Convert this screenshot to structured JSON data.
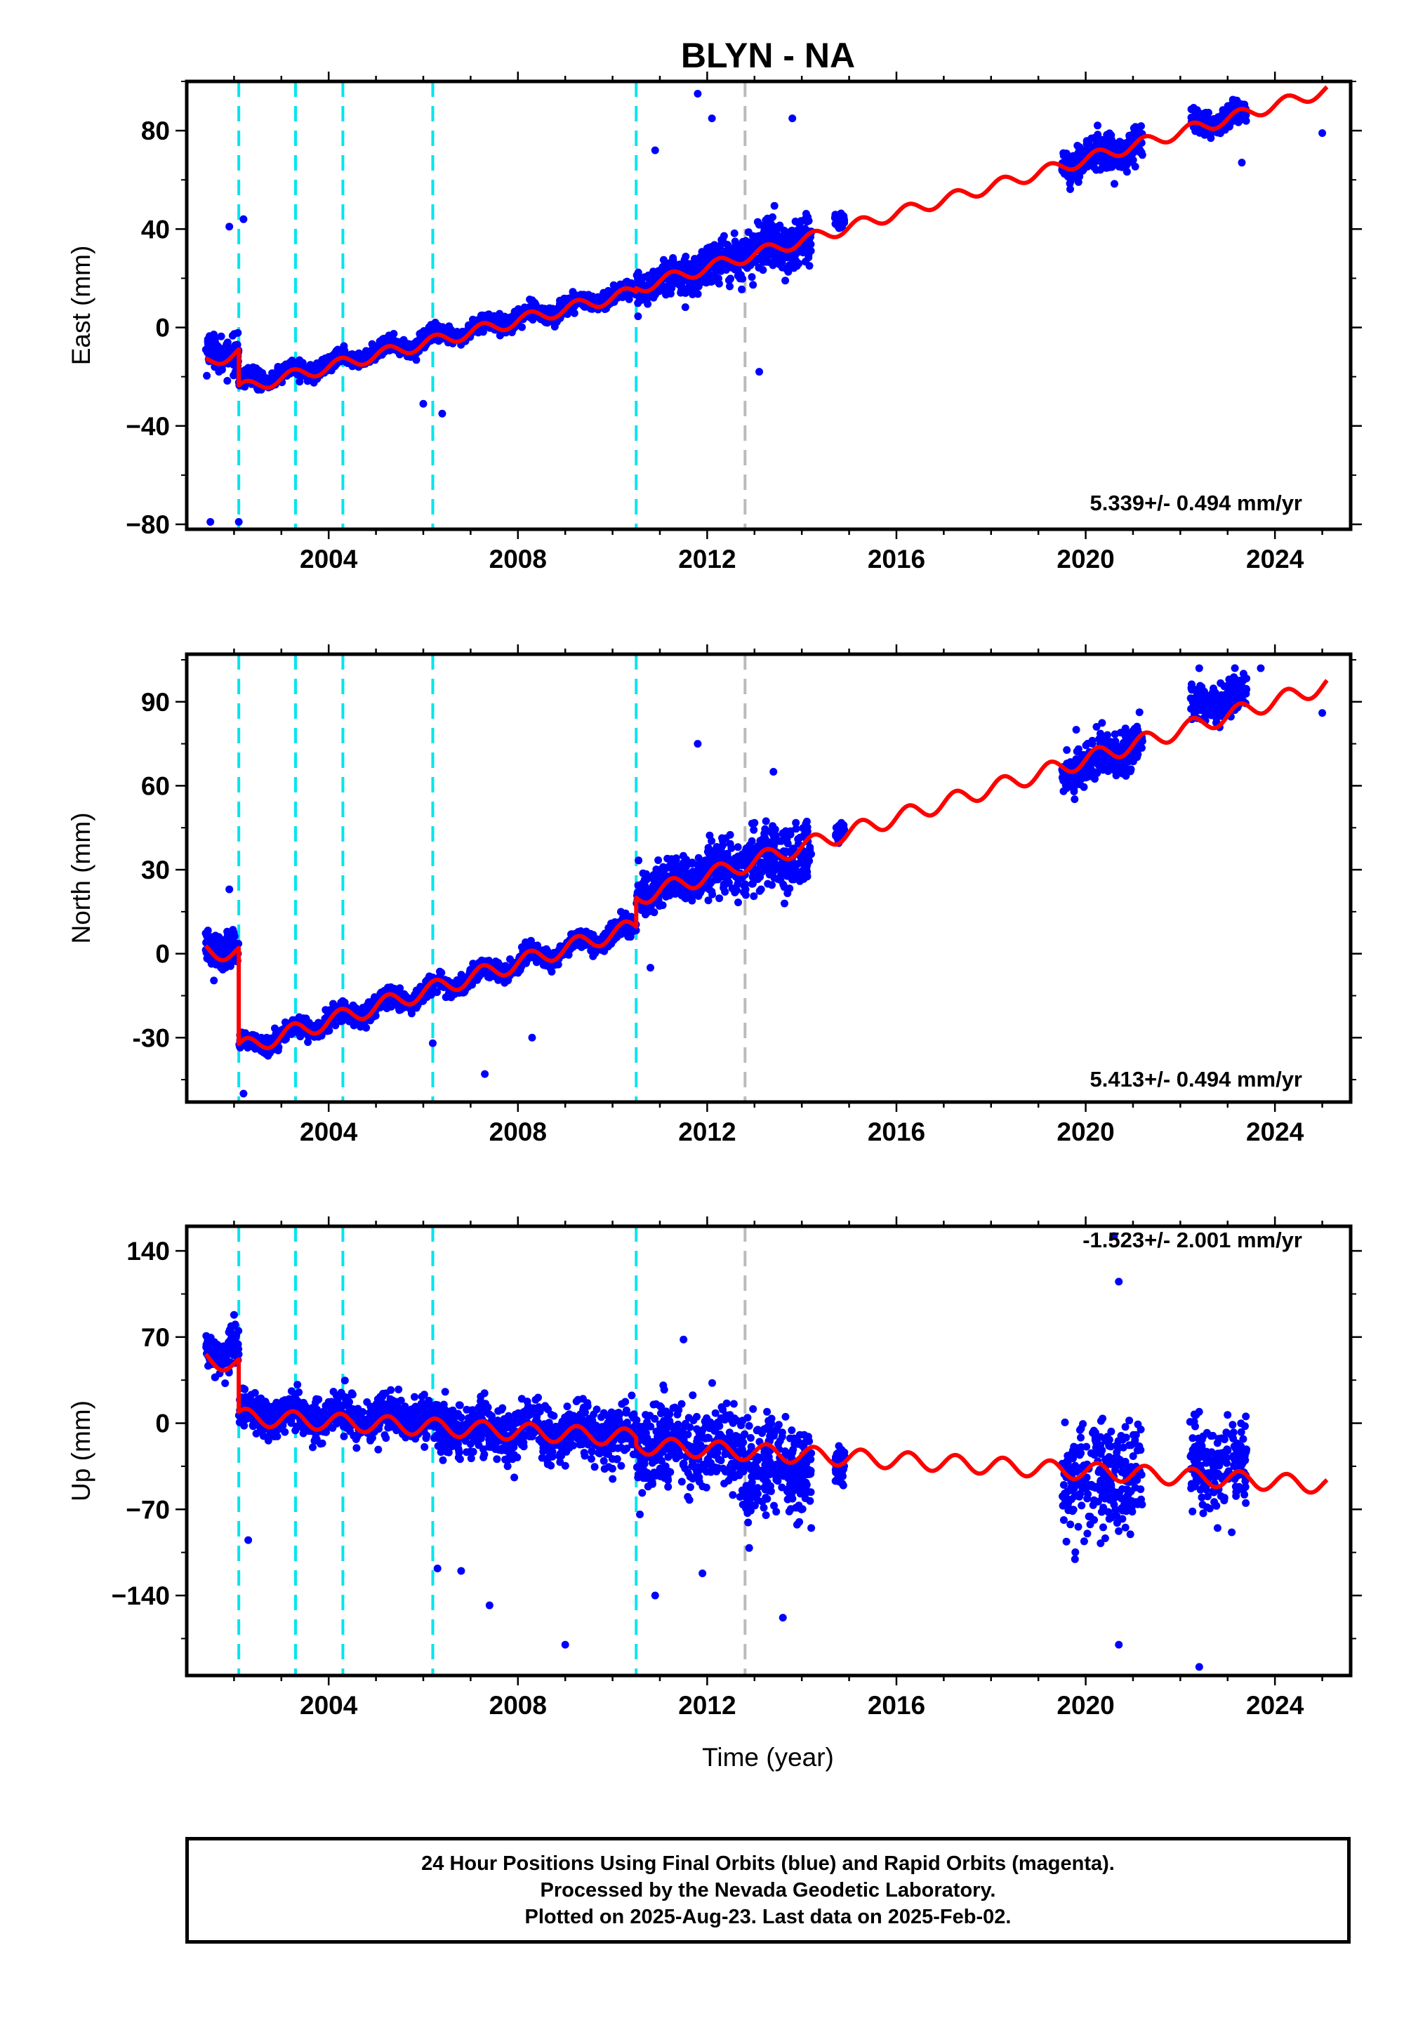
{
  "title": "BLYN - NA",
  "xlabel": "Time (year)",
  "caption": {
    "line1": "24 Hour Positions Using Final Orbits (blue) and Rapid Orbits (magenta).",
    "line2": "Processed by the Nevada Geodetic Laboratory.",
    "line3": "Plotted on 2025-Aug-23. Last data on 2025-Feb-02."
  },
  "colors": {
    "observations": "#0000ff",
    "model": "#ff0000",
    "offset_lines": "#00e5ee",
    "offset_line_gray": "#bbbbbb",
    "axis": "#000000"
  },
  "chart_data": [
    {
      "type": "scatter",
      "component": "east",
      "ylabel": "East (mm)",
      "rate_label": "5.339+/- 0.494 mm/yr",
      "xlim": [
        2001.0,
        2025.6
      ],
      "ylim": [
        -82,
        100
      ],
      "yticks": [
        -80,
        -40,
        0,
        40,
        80
      ],
      "ytick_labels": [
        "−80",
        "−40",
        "0",
        "40",
        "80"
      ],
      "xticks": [
        2004,
        2008,
        2012,
        2016,
        2020,
        2024
      ],
      "xtick_labels": [
        "2004",
        "2008",
        "2012",
        "2016",
        "2020",
        "2024"
      ],
      "offsets": [
        2002.1,
        2003.3,
        2004.3,
        2006.2,
        2010.5
      ],
      "offset_gray": [
        2012.8
      ],
      "model": {
        "segments": [
          {
            "from": 2001.4,
            "to": 2002.1,
            "start": -14,
            "slope": 5.2
          },
          {
            "from": 2002.1,
            "to": 2010.5,
            "start": -25,
            "slope": 4.7
          },
          {
            "from": 2010.5,
            "to": 2025.1,
            "start": 16,
            "slope": 5.5
          }
        ],
        "seasonal_amplitude": 2.5
      },
      "series": [
        {
          "label": "Final Orbits",
          "segments": [
            {
              "from": 2001.4,
              "to": 2002.1,
              "center": -10,
              "spread": 6
            },
            {
              "from": 2002.1,
              "to": 2010.5,
              "center": -23,
              "slope": 4.5,
              "spread": 3
            },
            {
              "from": 2010.5,
              "to": 2012.0,
              "center": 16,
              "slope": 5.5,
              "spread": 6
            },
            {
              "from": 2012.0,
              "to": 2014.2,
              "center": 25,
              "slope": 5.5,
              "spread": 9
            },
            {
              "from": 2014.7,
              "to": 2014.9,
              "center": 45,
              "spread": 3
            },
            {
              "from": 2019.5,
              "to": 2021.2,
              "center": 66,
              "slope": 5.0,
              "spread": 7
            },
            {
              "from": 2022.2,
              "to": 2023.4,
              "center": 82,
              "slope": 4.0,
              "spread": 4
            }
          ],
          "outliers": [
            [
              2001.5,
              -79
            ],
            [
              2002.1,
              -79
            ],
            [
              2001.9,
              41
            ],
            [
              2002.2,
              44
            ],
            [
              2011.8,
              95
            ],
            [
              2012.1,
              85
            ],
            [
              2013.1,
              -18
            ],
            [
              2013.8,
              85
            ],
            [
              2010.9,
              72
            ],
            [
              2006.0,
              -31
            ],
            [
              2006.4,
              -35
            ],
            [
              2025.0,
              79
            ],
            [
              2023.3,
              67
            ]
          ]
        }
      ]
    },
    {
      "type": "scatter",
      "component": "north",
      "ylabel": "North (mm)",
      "rate_label": "5.413+/- 0.494 mm/yr",
      "xlim": [
        2001.0,
        2025.6
      ],
      "ylim": [
        -53,
        107
      ],
      "yticks": [
        -30,
        0,
        30,
        60,
        90
      ],
      "ytick_labels": [
        "-30",
        "0",
        "30",
        "60",
        "90"
      ],
      "xticks": [
        2004,
        2008,
        2012,
        2016,
        2020,
        2024
      ],
      "xtick_labels": [
        "2004",
        "2008",
        "2012",
        "2016",
        "2020",
        "2024"
      ],
      "offsets": [
        2002.1,
        2003.3,
        2004.3,
        2006.2,
        2010.5
      ],
      "offset_gray": [
        2012.8
      ],
      "model": {
        "segments": [
          {
            "from": 2001.4,
            "to": 2002.1,
            "start": 1,
            "slope": -1.0
          },
          {
            "from": 2002.1,
            "to": 2010.5,
            "start": -34,
            "slope": 5.2
          },
          {
            "from": 2010.5,
            "to": 2025.1,
            "start": 20,
            "slope": 5.2
          }
        ],
        "seasonal_amplitude": 3
      },
      "series": [
        {
          "label": "Final Orbits",
          "segments": [
            {
              "from": 2001.4,
              "to": 2002.1,
              "center": 2,
              "spread": 6
            },
            {
              "from": 2002.1,
              "to": 2010.5,
              "center": -34,
              "slope": 5.2,
              "spread": 3
            },
            {
              "from": 2010.5,
              "to": 2012.0,
              "center": 22,
              "slope": 5.0,
              "spread": 7
            },
            {
              "from": 2012.0,
              "to": 2014.2,
              "center": 30,
              "slope": 3.0,
              "spread": 10
            },
            {
              "from": 2014.7,
              "to": 2014.9,
              "center": 45,
              "spread": 4
            },
            {
              "from": 2019.5,
              "to": 2021.2,
              "center": 65,
              "slope": 6.0,
              "spread": 7
            },
            {
              "from": 2022.2,
              "to": 2023.4,
              "center": 88,
              "slope": 4.0,
              "spread": 5
            }
          ],
          "outliers": [
            [
              2001.9,
              23
            ],
            [
              2002.2,
              -50
            ],
            [
              2007.3,
              -43
            ],
            [
              2006.2,
              -32
            ],
            [
              2008.3,
              -30
            ],
            [
              2011.8,
              75
            ],
            [
              2013.4,
              65
            ],
            [
              2022.4,
              102
            ],
            [
              2023.7,
              102
            ],
            [
              2025.0,
              86
            ],
            [
              2019.8,
              80
            ],
            [
              2010.8,
              -5
            ]
          ]
        }
      ]
    },
    {
      "type": "scatter",
      "component": "up",
      "ylabel": "Up (mm)",
      "rate_label": "-1.523+/- 2.001 mm/yr",
      "xlim": [
        2001.0,
        2025.6
      ],
      "ylim": [
        -205,
        160
      ],
      "yticks": [
        -140,
        -70,
        0,
        70,
        140
      ],
      "ytick_labels": [
        "−140",
        "−70",
        "0",
        "70",
        "140"
      ],
      "xticks": [
        2004,
        2008,
        2012,
        2016,
        2020,
        2024
      ],
      "xtick_labels": [
        "2004",
        "2008",
        "2012",
        "2016",
        "2020",
        "2024"
      ],
      "offsets": [
        2002.1,
        2003.3,
        2004.3,
        2006.2,
        2010.5
      ],
      "offset_gray": [
        2012.8
      ],
      "model": {
        "segments": [
          {
            "from": 2001.4,
            "to": 2002.1,
            "start": 52,
            "slope": -6.0
          },
          {
            "from": 2002.1,
            "to": 2010.5,
            "start": 5,
            "slope": -2.0
          },
          {
            "from": 2010.5,
            "to": 2025.1,
            "start": -18,
            "slope": -2.2
          }
        ],
        "seasonal_amplitude": 7
      },
      "series": [
        {
          "label": "Final Orbits",
          "segments": [
            {
              "from": 2001.4,
              "to": 2002.1,
              "center": 60,
              "spread": 14
            },
            {
              "from": 2002.1,
              "to": 2006.2,
              "center": 8,
              "slope": -1.0,
              "spread": 14
            },
            {
              "from": 2006.2,
              "to": 2010.5,
              "center": -5,
              "slope": -1.0,
              "spread": 20
            },
            {
              "from": 2010.5,
              "to": 2012.8,
              "center": -20,
              "slope": -1.0,
              "spread": 32
            },
            {
              "from": 2012.8,
              "to": 2014.2,
              "center": -35,
              "slope": 0,
              "spread": 38
            },
            {
              "from": 2014.7,
              "to": 2014.9,
              "center": -30,
              "spread": 15
            },
            {
              "from": 2019.5,
              "to": 2021.2,
              "center": -45,
              "slope": 0,
              "spread": 40
            },
            {
              "from": 2022.2,
              "to": 2023.4,
              "center": -35,
              "slope": 0,
              "spread": 30
            }
          ],
          "outliers": [
            [
              2002.3,
              -95
            ],
            [
              2006.3,
              -118
            ],
            [
              2006.8,
              -120
            ],
            [
              2007.4,
              -148
            ],
            [
              2009.0,
              -180
            ],
            [
              2010.9,
              -140
            ],
            [
              2011.9,
              -122
            ],
            [
              2013.6,
              -158
            ],
            [
              2020.6,
              152
            ],
            [
              2020.7,
              115
            ],
            [
              2022.4,
              -198
            ],
            [
              2020.7,
              -180
            ],
            [
              2002.0,
              88
            ],
            [
              2011.5,
              68
            ]
          ]
        }
      ]
    }
  ]
}
